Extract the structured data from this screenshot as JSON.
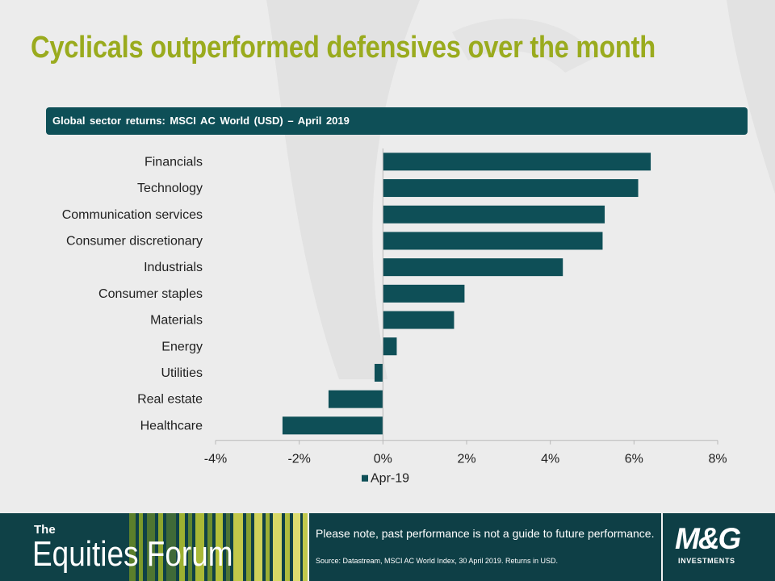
{
  "slide": {
    "title": "Cyclicals outperformed defensives over the month",
    "subtitle": "Global  sector  returns:  MSCI  AC  World  (USD)  – April  2019"
  },
  "chart_data": {
    "type": "bar",
    "orientation": "horizontal",
    "categories": [
      "Financials",
      "Technology",
      "Communication services",
      "Consumer discretionary",
      "Industrials",
      "Consumer staples",
      "Materials",
      "Energy",
      "Utilities",
      "Real estate",
      "Healthcare"
    ],
    "series": [
      {
        "name": "Apr-19",
        "values": [
          6.4,
          6.1,
          5.3,
          5.25,
          4.3,
          1.95,
          1.7,
          0.33,
          -0.2,
          -1.3,
          -2.4
        ]
      }
    ],
    "xlim": [
      -4,
      8
    ],
    "xticks": [
      -4,
      -2,
      0,
      2,
      4,
      6,
      8
    ],
    "xtick_labels": [
      "-4%",
      "-2%",
      "0%",
      "2%",
      "4%",
      "6%",
      "8%"
    ],
    "legend": "bottom",
    "grid": false,
    "bar_color": "#0e4f57"
  },
  "footer": {
    "forum_the": "The",
    "forum_name": "Equities Forum",
    "note": "Please note, past performance is not a guide to future performance.",
    "source": "Source: Datastream, MSCI  AC World Index, 30 April 2019. Returns in USD.",
    "logo_main": "M&G",
    "logo_sub": "INVESTMENTS"
  }
}
